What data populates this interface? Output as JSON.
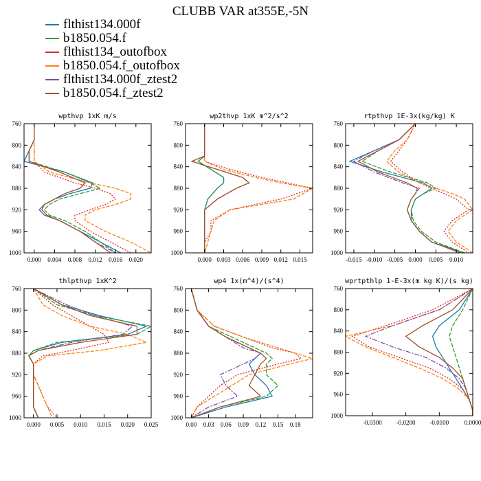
{
  "title": "CLUBB VAR at355E,-5N",
  "legend": [
    {
      "name": "flthist134.000f",
      "color": "#1f77b4"
    },
    {
      "name": "b1850.054.f",
      "color": "#2ca02c"
    },
    {
      "name": "flthist134_outofbox",
      "color": "#d62728"
    },
    {
      "name": "b1850.054.f_outofbox",
      "color": "#ff7f0e"
    },
    {
      "name": "flthist134.000f_ztest2",
      "color": "#7b4fa8"
    },
    {
      "name": "b1850.054.f_ztest2",
      "color": "#a0522d"
    }
  ],
  "chart_data": [
    {
      "type": "line",
      "title": "wpthvp  1xK m/s",
      "xlim": [
        -0.002,
        0.023
      ],
      "ylim": [
        760,
        1000
      ],
      "xticks": [
        "0.000",
        "0.004",
        "0.008",
        "0.012",
        "0.016",
        "0.020"
      ],
      "xtick_values": [
        0,
        0.004,
        0.008,
        0.012,
        0.016,
        0.02
      ],
      "yticks": [
        760,
        800,
        840,
        880,
        920,
        960,
        1000
      ],
      "y": [
        760,
        790,
        810,
        830,
        850,
        870,
        880,
        890,
        900,
        910,
        920,
        930,
        940,
        960,
        980,
        1000
      ],
      "series": [
        {
          "values": [
            0.0,
            0.0,
            -0.001,
            -0.002,
            0.006,
            0.0115,
            0.011,
            0.007,
            0.004,
            0.002,
            0.001,
            0.002,
            0.005,
            0.009,
            0.013,
            0.017
          ]
        },
        {
          "values": [
            0.0,
            0.0,
            -0.001,
            -0.001,
            0.006,
            0.011,
            0.013,
            0.009,
            0.005,
            0.003,
            0.002,
            0.003,
            0.006,
            0.01,
            0.013,
            0.016
          ]
        },
        {
          "values": [
            0.0,
            0.0,
            0.0,
            0.0,
            0.002,
            0.008,
            0.012,
            0.015,
            0.016,
            0.014,
            0.011,
            0.008,
            0.008,
            0.011,
            0.015,
            0.019
          ]
        },
        {
          "values": [
            0.0,
            0.0,
            0.0,
            0.0,
            0.003,
            0.011,
            0.016,
            0.019,
            0.019,
            0.016,
            0.012,
            0.01,
            0.01,
            0.014,
            0.019,
            0.023
          ]
        },
        {
          "values": [
            0.0,
            0.0,
            -0.001,
            -0.001,
            0.005,
            0.01,
            0.009,
            0.006,
            0.004,
            0.002,
            0.001,
            0.002,
            0.005,
            0.009,
            0.012,
            0.016
          ]
        },
        {
          "values": [
            0.0,
            0.0,
            -0.001,
            -0.001,
            0.005,
            0.01,
            0.009,
            0.006,
            0.004,
            0.002,
            0.0015,
            0.0025,
            0.005,
            0.009,
            0.012,
            0.015
          ]
        }
      ]
    },
    {
      "type": "line",
      "title": "wp2thvp  1xK m^2/s^2",
      "xlim": [
        -0.003,
        0.017
      ],
      "ylim": [
        760,
        1000
      ],
      "xticks": [
        "0.000",
        "0.003",
        "0.006",
        "0.009",
        "0.012",
        "0.015"
      ],
      "xtick_values": [
        0,
        0.003,
        0.006,
        0.009,
        0.012,
        0.015
      ],
      "yticks": [
        760,
        800,
        840,
        880,
        920,
        960,
        1000
      ],
      "y": [
        760,
        800,
        820,
        830,
        845,
        860,
        870,
        880,
        900,
        920,
        940,
        960,
        980,
        1000
      ],
      "series": [
        {
          "values": [
            0.0,
            0.0,
            0.0,
            -0.001,
            0.001,
            0.003,
            0.003,
            0.002,
            0.0005,
            0.0,
            0.0,
            0.0,
            0.0,
            0.0
          ]
        },
        {
          "values": [
            0.0,
            0.0,
            0.0,
            -0.001,
            0.001,
            0.003,
            0.003,
            0.002,
            0.0005,
            0.0,
            0.0,
            0.0,
            0.0,
            0.0
          ]
        },
        {
          "values": [
            0.0,
            0.0,
            0.0,
            0.0,
            0.004,
            0.009,
            0.013,
            0.017,
            0.012,
            0.004,
            0.001,
            0.001,
            0.0,
            0.0
          ]
        },
        {
          "values": [
            0.0,
            0.0,
            0.0,
            0.0,
            0.003,
            0.008,
            0.012,
            0.017,
            0.014,
            0.004,
            0.0015,
            0.001,
            0.0005,
            0.0
          ]
        },
        {
          "values": [
            0.0,
            0.0,
            0.0,
            -0.002,
            0.002,
            0.006,
            0.007,
            0.005,
            0.002,
            0.0,
            0.0,
            0.0,
            0.0,
            0.0
          ]
        },
        {
          "values": [
            0.0,
            0.0,
            0.0,
            -0.002,
            0.002,
            0.006,
            0.007,
            0.005,
            0.002,
            0.0,
            0.0,
            0.0,
            0.0,
            0.0
          ]
        }
      ]
    },
    {
      "type": "line",
      "title": "rtpthvp  1E-3x(kg/kg) K",
      "xlim": [
        -0.017,
        0.014
      ],
      "ylim": [
        760,
        1000
      ],
      "xticks": [
        "-0.015",
        "-0.010",
        "-0.005",
        "0.000",
        "0.005",
        "0.010"
      ],
      "xtick_values": [
        -0.015,
        -0.01,
        -0.005,
        0,
        0.005,
        0.01
      ],
      "yticks": [
        760,
        800,
        840,
        880,
        920,
        960,
        1000
      ],
      "y": [
        760,
        790,
        810,
        830,
        850,
        870,
        880,
        890,
        900,
        920,
        940,
        960,
        980,
        1000
      ],
      "series": [
        {
          "values": [
            0.0,
            -0.004,
            -0.01,
            -0.016,
            -0.008,
            0.002,
            0.004,
            0.002,
            0.0,
            -0.001,
            -0.001,
            0.001,
            0.004,
            0.012
          ]
        },
        {
          "values": [
            0.0,
            -0.004,
            -0.009,
            -0.013,
            -0.006,
            0.003,
            0.005,
            0.002,
            0.0,
            -0.001,
            -0.0005,
            0.0015,
            0.005,
            0.012
          ]
        },
        {
          "values": [
            0.0,
            -0.002,
            -0.004,
            -0.006,
            -0.003,
            0.001,
            0.004,
            0.007,
            0.01,
            0.013,
            0.009,
            0.007,
            0.009,
            0.013
          ]
        },
        {
          "values": [
            0.0,
            -0.002,
            -0.005,
            -0.007,
            -0.004,
            0.001,
            0.005,
            0.009,
            0.012,
            0.014,
            0.01,
            0.008,
            0.01,
            0.014
          ]
        },
        {
          "values": [
            0.0,
            -0.004,
            -0.01,
            -0.015,
            -0.01,
            -0.003,
            0.001,
            0.0,
            -0.001,
            -0.002,
            -0.001,
            0.001,
            0.004,
            0.011
          ]
        },
        {
          "values": [
            0.0,
            -0.004,
            -0.009,
            -0.014,
            -0.009,
            -0.002,
            0.0005,
            0.0,
            -0.001,
            -0.002,
            -0.001,
            0.001,
            0.004,
            0.011
          ]
        }
      ]
    },
    {
      "type": "line",
      "title": "thlpthvp  1xK^2",
      "xlim": [
        -0.002,
        0.025
      ],
      "ylim": [
        760,
        1000
      ],
      "xticks": [
        "0.000",
        "0.005",
        "0.010",
        "0.015",
        "0.020",
        "0.025"
      ],
      "xtick_values": [
        0,
        0.005,
        0.01,
        0.015,
        0.02,
        0.025
      ],
      "yticks": [
        760,
        800,
        840,
        880,
        920,
        960,
        1000
      ],
      "y": [
        760,
        790,
        810,
        830,
        845,
        860,
        875,
        885,
        900,
        920,
        940,
        960,
        980,
        1000
      ],
      "series": [
        {
          "values": [
            0.0,
            0.006,
            0.014,
            0.024,
            0.02,
            0.006,
            0.0,
            -0.001,
            0.0,
            0.0,
            0.0,
            0.0,
            0.0,
            0.001
          ]
        },
        {
          "values": [
            0.0,
            0.005,
            0.013,
            0.025,
            0.022,
            0.005,
            0.0,
            -0.001,
            0.0,
            0.0,
            0.0,
            0.0,
            0.0,
            0.001
          ]
        },
        {
          "values": [
            0.0,
            0.004,
            0.008,
            0.012,
            0.015,
            0.016,
            0.008,
            0.002,
            0.0,
            0.0,
            0.001,
            0.002,
            0.003,
            0.005
          ]
        },
        {
          "values": [
            0.0,
            0.002,
            0.006,
            0.012,
            0.02,
            0.024,
            0.014,
            0.003,
            0.0,
            0.0,
            0.001,
            0.002,
            0.003,
            0.004
          ]
        },
        {
          "values": [
            0.0,
            0.007,
            0.013,
            0.021,
            0.019,
            0.008,
            0.001,
            -0.001,
            0.0,
            0.0,
            0.0,
            0.0,
            0.0,
            0.001
          ]
        },
        {
          "values": [
            0.0,
            0.006,
            0.012,
            0.022,
            0.022,
            0.01,
            0.001,
            -0.001,
            0.0,
            0.0,
            0.0,
            0.0,
            0.0,
            0.001
          ]
        }
      ]
    },
    {
      "type": "line",
      "title": "wp4  1x(m^4)/(s^4)",
      "xlim": [
        -0.01,
        0.21
      ],
      "ylim": [
        760,
        1000
      ],
      "xticks": [
        "0.00",
        "0.03",
        "0.06",
        "0.09",
        "0.12",
        "0.15",
        "0.18"
      ],
      "xtick_values": [
        0,
        0.03,
        0.06,
        0.09,
        0.12,
        0.15,
        0.18
      ],
      "yticks": [
        760,
        800,
        840,
        880,
        920,
        960,
        1000
      ],
      "y": [
        760,
        800,
        830,
        850,
        870,
        880,
        890,
        900,
        920,
        940,
        960,
        980,
        1000
      ],
      "series": [
        {
          "values": [
            0.0,
            0.01,
            0.03,
            0.06,
            0.1,
            0.12,
            0.11,
            0.1,
            0.11,
            0.13,
            0.14,
            0.06,
            0.0
          ]
        },
        {
          "values": [
            0.0,
            0.01,
            0.03,
            0.07,
            0.11,
            0.13,
            0.14,
            0.13,
            0.13,
            0.15,
            0.13,
            0.05,
            0.0
          ]
        },
        {
          "values": [
            0.0,
            0.01,
            0.04,
            0.09,
            0.14,
            0.18,
            0.19,
            0.15,
            0.08,
            0.05,
            0.03,
            0.01,
            0.0
          ]
        },
        {
          "values": [
            0.0,
            0.01,
            0.04,
            0.09,
            0.15,
            0.18,
            0.21,
            0.17,
            0.1,
            0.07,
            0.04,
            0.01,
            0.0
          ]
        },
        {
          "values": [
            0.0,
            0.01,
            0.03,
            0.06,
            0.09,
            0.12,
            0.11,
            0.09,
            0.05,
            0.06,
            0.08,
            0.03,
            0.0
          ]
        },
        {
          "values": [
            0.0,
            0.01,
            0.03,
            0.06,
            0.1,
            0.12,
            0.13,
            0.12,
            0.11,
            0.1,
            0.12,
            0.05,
            0.0
          ]
        }
      ]
    },
    {
      "type": "line",
      "title": "wprtpthlp  1-E-3x(m kg K)/(s kg)",
      "xlim": [
        -0.038,
        0.0
      ],
      "ylim": [
        760,
        1000
      ],
      "xticks": [
        "-0.0300",
        "-0.0200",
        "-0.0100",
        "0.0000"
      ],
      "xtick_values": [
        -0.03,
        -0.02,
        -0.01,
        0
      ],
      "yticks": [
        760,
        800,
        840,
        880,
        920,
        960,
        1000
      ],
      "y": [
        760,
        800,
        830,
        850,
        870,
        890,
        910,
        930,
        950,
        970,
        990,
        1000
      ],
      "series": [
        {
          "values": [
            0.0,
            -0.004,
            -0.01,
            -0.012,
            -0.011,
            -0.009,
            -0.007,
            -0.005,
            -0.003,
            -0.001,
            0.0,
            0.0
          ]
        },
        {
          "values": [
            0.0,
            -0.003,
            -0.006,
            -0.007,
            -0.006,
            -0.005,
            -0.004,
            -0.003,
            -0.002,
            -0.001,
            0.0,
            0.0
          ]
        },
        {
          "values": [
            0.0,
            -0.012,
            -0.026,
            -0.036,
            -0.031,
            -0.022,
            -0.013,
            -0.007,
            -0.003,
            -0.001,
            0.0,
            0.0
          ]
        },
        {
          "values": [
            0.0,
            -0.01,
            -0.024,
            -0.038,
            -0.032,
            -0.024,
            -0.016,
            -0.009,
            -0.004,
            -0.001,
            0.0,
            0.0
          ]
        },
        {
          "values": [
            0.0,
            -0.01,
            -0.024,
            -0.032,
            -0.024,
            -0.014,
            -0.008,
            -0.004,
            -0.002,
            -0.001,
            0.0,
            0.0
          ]
        },
        {
          "values": [
            0.0,
            -0.006,
            -0.015,
            -0.02,
            -0.016,
            -0.01,
            -0.006,
            -0.003,
            -0.002,
            -0.001,
            0.0,
            0.0
          ]
        }
      ]
    }
  ]
}
